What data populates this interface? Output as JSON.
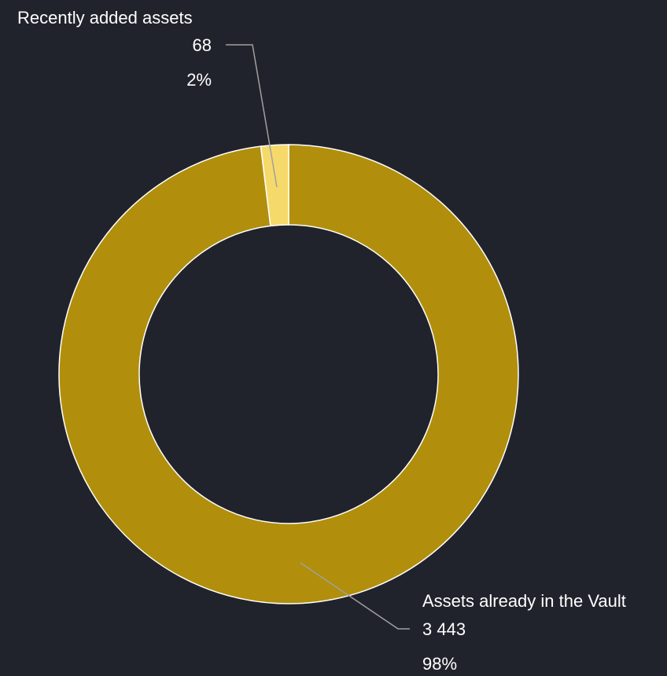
{
  "chart_data": {
    "type": "pie",
    "variant": "donut",
    "colors": {
      "background": "#21232c",
      "slice_border": "#ffffff",
      "leader_line": "#a0a0a0",
      "label_text": "#ffffff"
    },
    "slices": [
      {
        "name": "Recently added assets",
        "value": 68,
        "value_label": "68",
        "percent_label": "2%",
        "color": "#f6d96b"
      },
      {
        "name": "Assets already in the Vault",
        "value": 3443,
        "value_label": "3 443",
        "percent_label": "98%",
        "color": "#b18f0c"
      }
    ]
  }
}
